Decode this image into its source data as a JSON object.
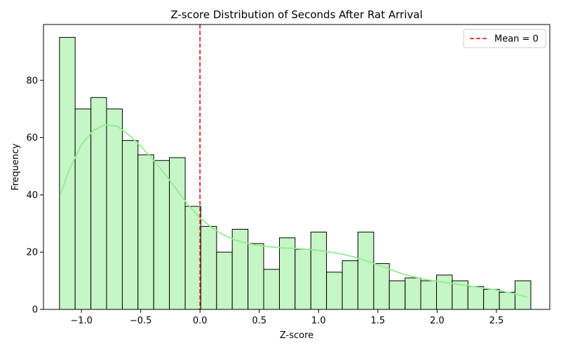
{
  "chart_data": {
    "type": "bar",
    "title": "Z-score Distribution of Seconds After Rat Arrival",
    "xlabel": "Z-score",
    "ylabel": "Frequency",
    "xlim": [
      -1.32,
      2.95
    ],
    "ylim": [
      0,
      99.5
    ],
    "xticks": [
      -1.0,
      -0.5,
      0.0,
      0.5,
      1.0,
      1.5,
      2.0,
      2.5
    ],
    "xtick_labels": [
      "−1.0",
      "−0.5",
      "0.0",
      "0.5",
      "1.0",
      "1.5",
      "2.0",
      "2.5"
    ],
    "yticks": [
      0,
      20,
      40,
      60,
      80
    ],
    "yticks_labels": [
      "0",
      "20",
      "40",
      "60",
      "80"
    ],
    "bin_edges": [
      -1.185,
      -1.053,
      -0.92,
      -0.788,
      -0.655,
      -0.523,
      -0.39,
      -0.258,
      -0.125,
      0.007,
      0.14,
      0.272,
      0.405,
      0.537,
      0.67,
      0.802,
      0.935,
      1.067,
      1.2,
      1.332,
      1.465,
      1.597,
      1.73,
      1.862,
      1.995,
      2.127,
      2.26,
      2.392,
      2.525,
      2.657,
      2.79
    ],
    "counts": [
      95,
      70,
      74,
      70,
      59,
      54,
      52,
      53,
      36,
      29,
      20,
      28,
      23,
      14,
      25,
      21,
      27,
      13,
      17,
      27,
      16,
      10,
      11,
      10,
      12,
      10,
      8,
      7,
      6,
      10
    ],
    "kde": {
      "x": [
        -1.18,
        -1.1,
        -1.0,
        -0.9,
        -0.8,
        -0.7,
        -0.6,
        -0.5,
        -0.4,
        -0.3,
        -0.2,
        -0.1,
        0.0,
        0.1,
        0.2,
        0.3,
        0.4,
        0.5,
        0.6,
        0.7,
        0.8,
        0.9,
        1.0,
        1.1,
        1.2,
        1.3,
        1.4,
        1.5,
        1.6,
        1.7,
        1.8,
        1.9,
        2.0,
        2.1,
        2.2,
        2.3,
        2.4,
        2.5,
        2.6,
        2.7,
        2.76
      ],
      "y": [
        40,
        49,
        57.5,
        62.5,
        64.5,
        64,
        61,
        57,
        52.5,
        47.5,
        42,
        36.5,
        32,
        28.5,
        26,
        24.2,
        23,
        22.3,
        21.8,
        21.5,
        21.3,
        21,
        20.6,
        20,
        19.3,
        18.3,
        17,
        15.5,
        14,
        12.5,
        11.4,
        10.5,
        9.8,
        9.2,
        8.6,
        8,
        7.4,
        6.8,
        6,
        5,
        4.2
      ]
    },
    "mean_line": {
      "x": 0,
      "label": "Mean = 0",
      "color": "#d62728"
    },
    "legend_position": "top-right",
    "bar_color": "#c6f5c6",
    "bar_edge_color": "#000000",
    "kde_color": "#90ee90",
    "grid": false
  }
}
